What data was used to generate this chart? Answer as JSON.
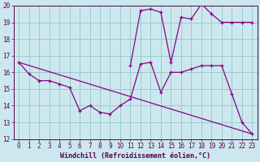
{
  "xlabel": "Windchill (Refroidissement éolien,°C)",
  "bg_color": "#cce8ee",
  "line_color": "#880088",
  "grid_color": "#99cccc",
  "line1_x": [
    0,
    1,
    2,
    3,
    4,
    5,
    6,
    7,
    8,
    9,
    10,
    11,
    12,
    13,
    14,
    15,
    16,
    17,
    18,
    19,
    20,
    21,
    22,
    23
  ],
  "line1_y": [
    16.6,
    15.9,
    15.5,
    15.5,
    15.3,
    15.1,
    13.7,
    14.0,
    13.6,
    13.5,
    14.0,
    14.4,
    16.5,
    16.6,
    14.8,
    16.0,
    16.0,
    16.2,
    16.4,
    16.4,
    16.4,
    14.7,
    13.0,
    12.3
  ],
  "line2_x": [
    0,
    23
  ],
  "line2_y": [
    16.6,
    12.3
  ],
  "line3_x": [
    11,
    12,
    13,
    14,
    15,
    16,
    17,
    18,
    19,
    20,
    21,
    22,
    23
  ],
  "line3_y": [
    16.4,
    19.7,
    19.8,
    19.6,
    16.6,
    19.3,
    19.2,
    20.1,
    19.5,
    19.0,
    19.0,
    19.0,
    19.0
  ],
  "ylim": [
    12,
    20
  ],
  "xlim": [
    -0.5,
    23.5
  ],
  "yticks": [
    12,
    13,
    14,
    15,
    16,
    17,
    18,
    19,
    20
  ],
  "xticks": [
    0,
    1,
    2,
    3,
    4,
    5,
    6,
    7,
    8,
    9,
    10,
    11,
    12,
    13,
    14,
    15,
    16,
    17,
    18,
    19,
    20,
    21,
    22,
    23
  ]
}
